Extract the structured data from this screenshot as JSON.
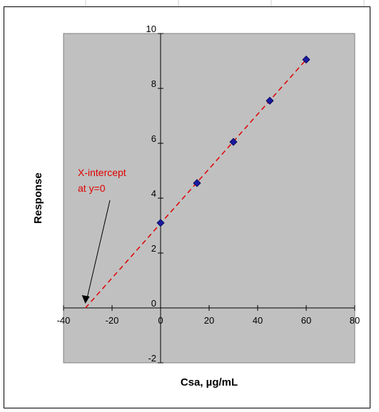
{
  "chart_data": {
    "type": "scatter",
    "title": "",
    "xlabel": "Csa, µg/mL",
    "ylabel": "Response",
    "xlim": [
      -40,
      80
    ],
    "ylim": [
      -2,
      10
    ],
    "xticks": [
      -40,
      -20,
      0,
      20,
      40,
      60,
      80
    ],
    "yticks": [
      -2,
      0,
      2,
      4,
      6,
      8,
      10
    ],
    "grid": false,
    "legend": "none",
    "series": [
      {
        "x": [
          0,
          15,
          30,
          45,
          60
        ],
        "y": [
          3.1,
          4.55,
          6.05,
          7.55,
          9.05
        ],
        "marker": "diamond"
      }
    ],
    "fit_line": {
      "style": "dashed",
      "slope": 0.0995,
      "intercept": 3.08,
      "x_range": [
        -31,
        60
      ]
    },
    "annotation": {
      "lines": [
        "X-intercept",
        "at y=0"
      ],
      "arrow_to": [
        -31,
        0
      ]
    },
    "colors": {
      "plot_area": "#c0c0c0",
      "points": "#1a1aa0",
      "fit_line": "#e00000",
      "annotation": "#e00000",
      "axes": "#000000"
    }
  }
}
